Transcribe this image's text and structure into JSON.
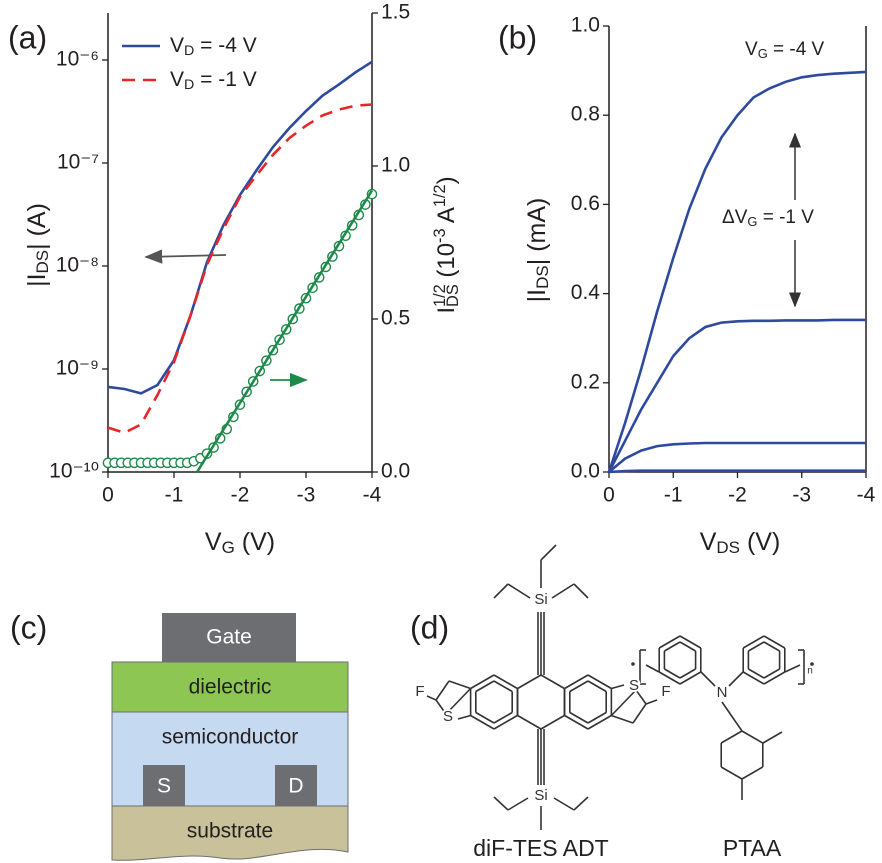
{
  "chart_data": [
    {
      "type": "line",
      "label": "(a)",
      "xlabel": [
        "V",
        "G",
        " (V)"
      ],
      "ylabel": [
        "|I",
        "DS",
        "| (A)"
      ],
      "y2label": [
        "I",
        "1/2",
        "DS",
        " (10",
        "-3",
        " A",
        "1/2",
        ")"
      ],
      "x": [
        0,
        -0.25,
        -0.5,
        -0.75,
        -1,
        -1.25,
        -1.5,
        -1.75,
        -2,
        -2.25,
        -2.5,
        -2.75,
        -3,
        -3.25,
        -3.5,
        -3.75,
        -4
      ],
      "xlim": [
        0,
        -4
      ],
      "xticks": [
        0,
        -1,
        -2,
        -3,
        -4
      ],
      "yscale": "log",
      "ylim": [
        1e-10,
        2.86e-06
      ],
      "yticks": [
        {
          "value": 1e-10,
          "label": "10⁻¹⁰"
        },
        {
          "value": 1e-09,
          "label": "10⁻⁹"
        },
        {
          "value": 1e-08,
          "label": "10⁻⁸"
        },
        {
          "value": 1e-07,
          "label": "10⁻⁷"
        },
        {
          "value": 1e-06,
          "label": "10⁻⁶"
        }
      ],
      "y2lim": [
        0,
        1.5
      ],
      "y2ticks": [
        {
          "value": 0,
          "label": "0.0"
        },
        0.5,
        {
          "value": 1,
          "label": "1.0"
        },
        1.5
      ],
      "legend": "upper left",
      "series": [
        {
          "name": [
            "V",
            "D",
            " = -4 V"
          ],
          "color": "#2e4a9e",
          "linestyle": "solid",
          "values": [
            6.7e-10,
            6.4e-10,
            5.8e-10,
            7e-10,
            1.22e-09,
            3.3e-09,
            1.09e-08,
            2.5e-08,
            4.9e-08,
            8.5e-08,
            1.43e-07,
            2.19e-07,
            3.2e-07,
            4.5e-07,
            5.8e-07,
            7.6e-07,
            9.6e-07
          ]
        },
        {
          "name": [
            "V",
            "D",
            " = -1 V"
          ],
          "color": "#e8262a",
          "linestyle": "dashed",
          "values": [
            2.7e-10,
            2.4e-10,
            2.9e-10,
            5.6e-10,
            1.17e-09,
            3.3e-09,
            1.03e-08,
            2.3e-08,
            4.7e-08,
            7.6e-08,
            1.2e-07,
            1.75e-07,
            2.3e-07,
            2.9e-07,
            3.3e-07,
            3.6e-07,
            3.7e-07
          ]
        },
        {
          "color": "#1e8a4a",
          "linestyle": "none",
          "marker": "circle",
          "axis": "y2",
          "x": [
            0,
            -0.1,
            -0.2,
            -0.3,
            -0.4,
            -0.5,
            -0.6,
            -0.7,
            -0.8,
            -0.9,
            -1,
            -1.1,
            -1.2,
            -1.3,
            -1.4,
            -1.5,
            -1.6,
            -1.7,
            -1.8,
            -1.9,
            -2,
            -2.1,
            -2.2,
            -2.3,
            -2.4,
            -2.5,
            -2.6,
            -2.7,
            -2.8,
            -2.9,
            -3,
            -3.1,
            -3.2,
            -3.3,
            -3.4,
            -3.5,
            -3.6,
            -3.7,
            -3.8,
            -3.9,
            -4
          ],
          "values": [
            0.03,
            0.03,
            0.03,
            0.03,
            0.03,
            0.03,
            0.03,
            0.03,
            0.03,
            0.03,
            0.03,
            0.03,
            0.03,
            0.035,
            0.045,
            0.06,
            0.08,
            0.11,
            0.14,
            0.18,
            0.22,
            0.262,
            0.296,
            0.33,
            0.364,
            0.398,
            0.432,
            0.466,
            0.5,
            0.534,
            0.568,
            0.602,
            0.636,
            0.67,
            0.704,
            0.738,
            0.772,
            0.806,
            0.84,
            0.874,
            0.908
          ]
        },
        {
          "color": "#1e8a4a",
          "linestyle": "solid",
          "axis": "y2",
          "x": [
            -1.35,
            -4
          ],
          "values": [
            0,
            0.92
          ]
        }
      ]
    },
    {
      "type": "line",
      "label": "(b)",
      "xlabel": [
        "V",
        "DS",
        " (V)"
      ],
      "ylabel": [
        "|I",
        "DS",
        "| (mA)"
      ],
      "x": [
        0,
        -0.25,
        -0.5,
        -0.75,
        -1,
        -1.25,
        -1.5,
        -1.75,
        -2,
        -2.25,
        -2.5,
        -2.75,
        -3,
        -3.25,
        -3.5,
        -3.75,
        -4
      ],
      "xlim": [
        0,
        -4
      ],
      "xticks": [
        0,
        -1,
        -2,
        -3,
        -4
      ],
      "ylim": [
        0,
        1
      ],
      "yticks": [
        {
          "value": 0,
          "label": "0.0"
        },
        0.2,
        0.4,
        0.6,
        0.8,
        {
          "value": 1,
          "label": "1.0"
        }
      ],
      "annotations": [
        {
          "text": [
            "V",
            "G",
            " = -4 V"
          ]
        },
        {
          "text": [
            "ΔV",
            "G",
            " = -1 V"
          ]
        }
      ],
      "series": [
        {
          "color": "#2e4a9e",
          "linestyle": "solid",
          "values": [
            0,
            0.11,
            0.23,
            0.36,
            0.48,
            0.59,
            0.68,
            0.75,
            0.8,
            0.84,
            0.86,
            0.875,
            0.885,
            0.89,
            0.893,
            0.895,
            0.897
          ]
        },
        {
          "color": "#2e4a9e",
          "linestyle": "solid",
          "values": [
            0,
            0.07,
            0.14,
            0.2,
            0.26,
            0.3,
            0.325,
            0.335,
            0.338,
            0.339,
            0.339,
            0.34,
            0.34,
            0.34,
            0.341,
            0.341,
            0.341
          ]
        },
        {
          "color": "#2e4a9e",
          "linestyle": "solid",
          "values": [
            0,
            0.03,
            0.048,
            0.058,
            0.062,
            0.064,
            0.065,
            0.065,
            0.065,
            0.065,
            0.065,
            0.065,
            0.065,
            0.065,
            0.065,
            0.065,
            0.065
          ]
        },
        {
          "color": "#2e4a9e",
          "linestyle": "solid",
          "values": [
            0,
            0.002,
            0.003,
            0.003,
            0.003,
            0.003,
            0.003,
            0.003,
            0.003,
            0.003,
            0.003,
            0.003,
            0.003,
            0.003,
            0.003,
            0.003,
            0.003
          ]
        }
      ]
    }
  ],
  "diagram": {
    "label": "(c)",
    "gate": "Gate",
    "dielectric": "dielectric",
    "semiconductor": "semiconductor",
    "source": "S",
    "drain": "D",
    "substrate": "substrate"
  },
  "structures": {
    "label": "(d)",
    "molecules": [
      {
        "name": "diF-TES ADT",
        "atoms": [
          "Si",
          "Si",
          "S",
          "S",
          "F",
          "F"
        ]
      },
      {
        "name": "PTAA",
        "atoms": [
          "N",
          "n"
        ]
      }
    ]
  }
}
